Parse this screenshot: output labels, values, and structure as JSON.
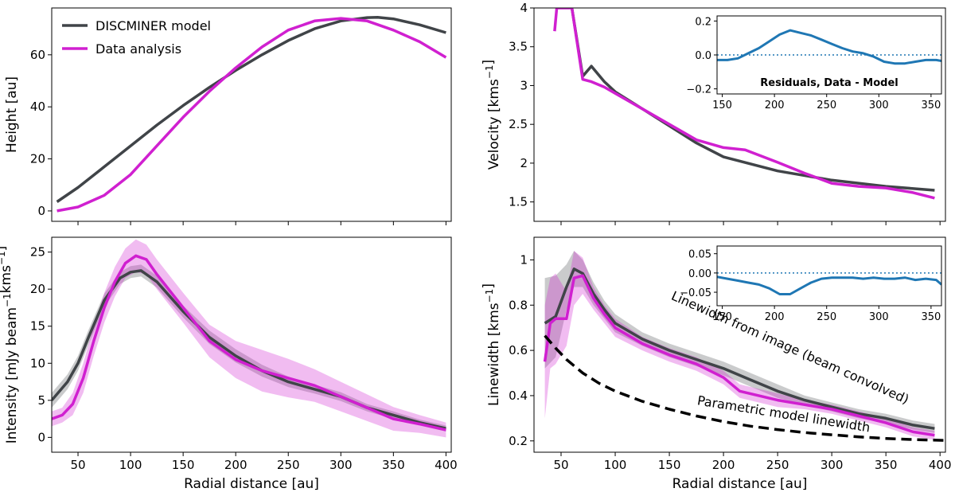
{
  "colors": {
    "model": "#404448",
    "data": "#d020d0",
    "residual": "#1f77b4",
    "parametric": "#000000"
  },
  "chart_data": [
    {
      "id": "height",
      "type": "line",
      "xlabel": "",
      "ylabel": "Height [au]",
      "xlim": [
        25,
        405
      ],
      "ylim": [
        -4,
        78
      ],
      "xticks": [
        50,
        100,
        150,
        200,
        250,
        300,
        350,
        400
      ],
      "yticks": [
        0,
        20,
        40,
        60
      ],
      "show_xtick_labels": false,
      "legend": {
        "position": "top-left",
        "entries": [
          "DISCMINER model",
          "Data analysis"
        ]
      },
      "series": [
        {
          "name": "DISCMINER model",
          "color": "model",
          "x": [
            30,
            50,
            75,
            100,
            125,
            150,
            175,
            200,
            225,
            250,
            275,
            300,
            325,
            335,
            350,
            375,
            400
          ],
          "y": [
            3.5,
            9,
            17,
            25,
            33,
            40.5,
            47.5,
            54,
            60,
            65.5,
            70,
            73,
            74.3,
            74.4,
            73.8,
            71.5,
            68.5
          ]
        },
        {
          "name": "Data analysis",
          "color": "data",
          "x": [
            30,
            50,
            75,
            100,
            125,
            150,
            175,
            200,
            225,
            250,
            275,
            300,
            325,
            350,
            375,
            400
          ],
          "y": [
            0,
            1.5,
            6,
            14,
            25,
            36,
            46,
            55,
            63,
            69.5,
            73,
            74,
            73,
            69.5,
            65,
            59
          ]
        }
      ]
    },
    {
      "id": "velocity",
      "type": "line",
      "xlabel": "",
      "ylabel": "Velocity [kms⁻¹]",
      "xlim": [
        25,
        405
      ],
      "ylim": [
        1.25,
        4.0
      ],
      "xticks": [
        50,
        100,
        150,
        200,
        250,
        300,
        350,
        400
      ],
      "yticks": [
        1.5,
        2.0,
        2.5,
        3.0,
        3.5,
        4.0
      ],
      "show_xtick_labels": false,
      "series": [
        {
          "name": "DISCMINER model",
          "color": "model",
          "x": [
            60,
            70,
            78,
            90,
            100,
            125,
            150,
            175,
            200,
            250,
            300,
            350,
            395
          ],
          "y": [
            4.0,
            3.12,
            3.25,
            3.05,
            2.92,
            2.7,
            2.48,
            2.26,
            2.08,
            1.9,
            1.78,
            1.7,
            1.65
          ]
        },
        {
          "name": "Data analysis",
          "color": "data",
          "x": [
            44,
            46,
            60,
            70,
            78,
            90,
            100,
            125,
            150,
            175,
            200,
            220,
            250,
            275,
            300,
            325,
            350,
            375,
            395
          ],
          "y": [
            3.7,
            4.0,
            4.0,
            3.08,
            3.05,
            2.98,
            2.9,
            2.7,
            2.5,
            2.3,
            2.2,
            2.17,
            2.01,
            1.87,
            1.74,
            1.7,
            1.68,
            1.62,
            1.55
          ]
        }
      ],
      "inset": {
        "title": "Residuals, Data - Model",
        "xlim": [
          145,
          360
        ],
        "ylim": [
          -0.23,
          0.23
        ],
        "xticks": [
          150,
          200,
          250,
          300,
          350
        ],
        "yticks": [
          -0.2,
          0.0,
          0.2
        ],
        "ytick_labels": [
          "−0.2",
          "0.0",
          "0.2"
        ],
        "zero_line": true,
        "series": [
          {
            "color": "residual",
            "x": [
              145,
              155,
              165,
              175,
              185,
              195,
              205,
              215,
              225,
              235,
              245,
              255,
              265,
              275,
              285,
              295,
              305,
              315,
              325,
              335,
              345,
              355,
              360
            ],
            "y": [
              -0.03,
              -0.03,
              -0.02,
              0.01,
              0.04,
              0.08,
              0.12,
              0.145,
              0.13,
              0.115,
              0.09,
              0.065,
              0.04,
              0.02,
              0.01,
              -0.01,
              -0.04,
              -0.05,
              -0.05,
              -0.04,
              -0.03,
              -0.03,
              -0.035
            ]
          }
        ]
      }
    },
    {
      "id": "intensity",
      "type": "line",
      "xlabel": "Radial distance [au]",
      "ylabel": "Intensity [mJy beam⁻¹kms⁻¹]",
      "xlim": [
        25,
        405
      ],
      "ylim": [
        -2,
        27
      ],
      "xticks": [
        50,
        100,
        150,
        200,
        250,
        300,
        350,
        400
      ],
      "yticks": [
        0,
        5,
        10,
        15,
        20,
        25
      ],
      "show_xtick_labels": true,
      "series": [
        {
          "name": "DISCMINER model",
          "color": "model",
          "x": [
            25,
            40,
            50,
            60,
            75,
            90,
            100,
            110,
            125,
            150,
            175,
            200,
            225,
            250,
            275,
            300,
            325,
            350,
            375,
            400
          ],
          "y": [
            5,
            7.5,
            10,
            13.5,
            18.5,
            21.5,
            22.3,
            22.5,
            21,
            17,
            13.5,
            11,
            9,
            7.5,
            6.5,
            5.5,
            4,
            3,
            2,
            1.2
          ],
          "band": [
            1.0,
            1.0,
            1.0,
            1.0,
            0.9,
            0.8,
            0.8,
            0.8,
            0.8,
            0.8,
            0.9,
            0.9,
            0.8,
            0.7,
            0.6,
            0.6,
            0.5,
            0.5,
            0.4,
            0.4
          ]
        },
        {
          "name": "Data analysis",
          "color": "data",
          "x": [
            25,
            35,
            45,
            55,
            65,
            75,
            85,
            95,
            105,
            115,
            125,
            150,
            175,
            200,
            225,
            250,
            275,
            300,
            325,
            350,
            375,
            400
          ],
          "y": [
            2.5,
            3,
            4.5,
            8,
            13,
            17.5,
            21,
            23.5,
            24.5,
            24,
            22,
            17.5,
            13,
            10.5,
            9,
            8,
            7,
            5.5,
            4,
            2.5,
            1.8,
            1
          ],
          "band": [
            1.0,
            1.0,
            1.5,
            2.0,
            2.0,
            2.0,
            2.0,
            2.0,
            2.2,
            2.0,
            2.0,
            2.0,
            2.2,
            2.5,
            2.8,
            2.6,
            2.2,
            2.0,
            1.8,
            1.6,
            1.2,
            1.0
          ]
        }
      ]
    },
    {
      "id": "linewidth",
      "type": "line",
      "xlabel": "Radial distance [au]",
      "ylabel": "Linewidth [kms⁻¹]",
      "xlim": [
        25,
        405
      ],
      "ylim": [
        0.15,
        1.1
      ],
      "xticks": [
        50,
        100,
        150,
        200,
        250,
        300,
        350,
        400
      ],
      "yticks": [
        0.2,
        0.4,
        0.6,
        0.8,
        1.0
      ],
      "show_xtick_labels": true,
      "annotations": [
        {
          "text": "Linewidth from image (beam convolved)",
          "x": 260,
          "y": 0.595,
          "rotate": 24
        },
        {
          "text": "Parametric model linewidth",
          "x": 255,
          "y": 0.3,
          "rotate": 9
        }
      ],
      "series": [
        {
          "name": "DISCMINER model",
          "color": "model",
          "x": [
            35,
            45,
            55,
            62,
            70,
            80,
            90,
            100,
            125,
            150,
            175,
            200,
            225,
            250,
            275,
            300,
            325,
            350,
            375,
            395
          ],
          "y": [
            0.72,
            0.75,
            0.88,
            0.96,
            0.94,
            0.85,
            0.78,
            0.72,
            0.65,
            0.6,
            0.56,
            0.52,
            0.47,
            0.42,
            0.38,
            0.35,
            0.32,
            0.3,
            0.27,
            0.255
          ],
          "band": [
            0.2,
            0.18,
            0.1,
            0.08,
            0.06,
            0.05,
            0.04,
            0.04,
            0.03,
            0.03,
            0.03,
            0.03,
            0.03,
            0.03,
            0.02,
            0.02,
            0.02,
            0.02,
            0.02,
            0.02
          ]
        },
        {
          "name": "Data analysis",
          "color": "data",
          "x": [
            35,
            40,
            45,
            55,
            62,
            70,
            80,
            90,
            100,
            125,
            150,
            175,
            200,
            215,
            250,
            275,
            300,
            325,
            350,
            375,
            395
          ],
          "y": [
            0.55,
            0.72,
            0.74,
            0.74,
            0.92,
            0.93,
            0.83,
            0.76,
            0.7,
            0.63,
            0.58,
            0.54,
            0.48,
            0.42,
            0.38,
            0.36,
            0.34,
            0.31,
            0.28,
            0.24,
            0.225
          ],
          "band": [
            0.25,
            0.2,
            0.2,
            0.12,
            0.12,
            0.08,
            0.05,
            0.04,
            0.04,
            0.03,
            0.03,
            0.03,
            0.03,
            0.03,
            0.03,
            0.02,
            0.02,
            0.02,
            0.02,
            0.02,
            0.02
          ]
        },
        {
          "name": "Parametric model linewidth",
          "color": "parametric",
          "dashed": true,
          "x": [
            35,
            45,
            55,
            70,
            85,
            100,
            125,
            150,
            175,
            200,
            225,
            250,
            275,
            300,
            325,
            350,
            375,
            405
          ],
          "y": [
            0.665,
            0.61,
            0.56,
            0.5,
            0.455,
            0.42,
            0.375,
            0.34,
            0.31,
            0.285,
            0.265,
            0.25,
            0.237,
            0.227,
            0.218,
            0.211,
            0.206,
            0.202
          ]
        }
      ],
      "inset": {
        "title": "",
        "xlim": [
          145,
          360
        ],
        "ylim": [
          -0.085,
          0.07
        ],
        "xticks": [
          150,
          200,
          250,
          300,
          350
        ],
        "yticks": [
          -0.05,
          0.0,
          0.05
        ],
        "ytick_labels": [
          "−0.05",
          "0.00",
          "0.05"
        ],
        "zero_line": true,
        "series": [
          {
            "color": "residual",
            "x": [
              145,
              155,
              165,
              175,
              185,
              195,
              205,
              215,
              225,
              235,
              245,
              255,
              265,
              275,
              285,
              295,
              305,
              315,
              325,
              335,
              345,
              355,
              360
            ],
            "y": [
              -0.01,
              -0.015,
              -0.02,
              -0.025,
              -0.03,
              -0.04,
              -0.055,
              -0.055,
              -0.04,
              -0.025,
              -0.015,
              -0.012,
              -0.012,
              -0.012,
              -0.015,
              -0.012,
              -0.015,
              -0.015,
              -0.012,
              -0.018,
              -0.015,
              -0.018,
              -0.03
            ]
          }
        ]
      }
    }
  ]
}
